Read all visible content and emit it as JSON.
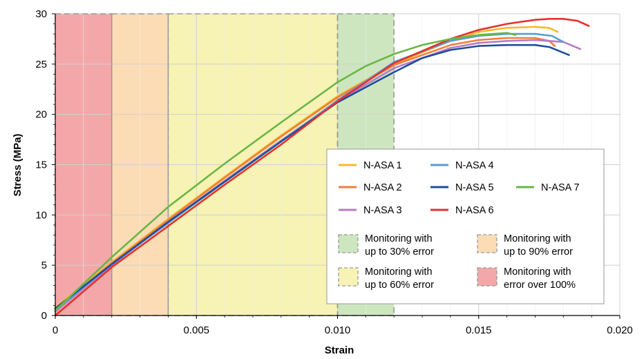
{
  "chart_data": {
    "type": "line",
    "title": "",
    "xlabel": "Strain",
    "ylabel": "Stress (MPa)",
    "xlim": [
      0,
      0.02
    ],
    "ylim": [
      0,
      30
    ],
    "x_ticks": [
      0,
      0.005,
      0.01,
      0.015,
      0.02
    ],
    "x_tick_labels": [
      "0",
      "0.005",
      "0.010",
      "0.015",
      "0.020"
    ],
    "y_ticks": [
      0,
      5,
      10,
      15,
      20,
      25,
      30
    ],
    "y_tick_labels": [
      "0",
      "5",
      "10",
      "15",
      "20",
      "25",
      "30"
    ],
    "grid": true,
    "legend_position": "lower-right",
    "regions": [
      {
        "label": "Monitoring with error over 100%",
        "lines": [
          "Monitoring with",
          "error over 100%"
        ],
        "x_range": [
          0,
          0.002
        ],
        "color": "#f4a7a8"
      },
      {
        "label": "Monitoring with up to 90% error",
        "lines": [
          "Monitoring with",
          "up to 90% error"
        ],
        "x_range": [
          0.002,
          0.004
        ],
        "color": "#fcdcb4"
      },
      {
        "label": "Monitoring with up to 60% error",
        "lines": [
          "Monitoring with",
          "up to 60% error"
        ],
        "x_range": [
          0.004,
          0.01
        ],
        "color": "#f6f3b4"
      },
      {
        "label": "Monitoring with up to 30% error",
        "lines": [
          "Monitoring with",
          "up to 30% error"
        ],
        "x_range": [
          0.01,
          0.012
        ],
        "color": "#cde6c0"
      }
    ],
    "series": [
      {
        "name": "N-ASA 1",
        "color": "#f7b92a",
        "x": [
          0,
          0.002,
          0.004,
          0.006,
          0.008,
          0.01,
          0.012,
          0.014,
          0.015,
          0.016,
          0.017,
          0.0175,
          0.0178
        ],
        "y": [
          0.8,
          5.3,
          9.6,
          13.8,
          17.9,
          21.8,
          25.0,
          27.3,
          28.2,
          28.6,
          28.7,
          28.6,
          28.2
        ]
      },
      {
        "name": "N-ASA 2",
        "color": "#f07e3c",
        "x": [
          0,
          0.002,
          0.004,
          0.006,
          0.008,
          0.01,
          0.012,
          0.014,
          0.015,
          0.016,
          0.017,
          0.0175,
          0.0177
        ],
        "y": [
          0.6,
          5.2,
          9.5,
          13.7,
          17.8,
          21.7,
          24.9,
          26.9,
          27.4,
          27.6,
          27.6,
          27.3,
          26.8
        ]
      },
      {
        "name": "N-ASA 3",
        "color": "#b57cc4",
        "x": [
          0,
          0.002,
          0.004,
          0.006,
          0.008,
          0.01,
          0.012,
          0.014,
          0.015,
          0.016,
          0.017,
          0.018,
          0.0186
        ],
        "y": [
          0.4,
          5.0,
          9.3,
          13.4,
          17.4,
          21.3,
          24.6,
          26.6,
          27.1,
          27.3,
          27.4,
          27.2,
          26.5
        ]
      },
      {
        "name": "N-ASA 4",
        "color": "#5b9bd5",
        "x": [
          0,
          0.002,
          0.004,
          0.006,
          0.008,
          0.01,
          0.012,
          0.014,
          0.015,
          0.016,
          0.017,
          0.0176,
          0.018
        ],
        "y": [
          0.5,
          5.1,
          9.2,
          13.3,
          17.3,
          21.4,
          25.2,
          27.3,
          27.8,
          28.0,
          28.0,
          27.8,
          27.2
        ]
      },
      {
        "name": "N-ASA 5",
        "color": "#1c4e9c",
        "x": [
          0,
          0.002,
          0.004,
          0.006,
          0.008,
          0.01,
          0.012,
          0.013,
          0.014,
          0.015,
          0.016,
          0.017,
          0.0175,
          0.0182
        ],
        "y": [
          0.7,
          5.1,
          9.3,
          13.3,
          17.3,
          21.2,
          24.2,
          25.6,
          26.4,
          26.8,
          26.9,
          26.9,
          26.7,
          25.9
        ]
      },
      {
        "name": "N-ASA 6",
        "color": "#e6302f",
        "x": [
          0,
          0.002,
          0.004,
          0.006,
          0.008,
          0.01,
          0.012,
          0.014,
          0.015,
          0.016,
          0.017,
          0.0175,
          0.018,
          0.0185,
          0.0189
        ],
        "y": [
          0,
          4.8,
          8.9,
          13.0,
          17.0,
          21.3,
          25.1,
          27.5,
          28.4,
          29.0,
          29.4,
          29.5,
          29.5,
          29.3,
          28.8
        ]
      },
      {
        "name": "N-ASA 7",
        "color": "#6ab646",
        "x": [
          0,
          0.002,
          0.004,
          0.006,
          0.008,
          0.01,
          0.011,
          0.012,
          0.013,
          0.014,
          0.015,
          0.016,
          0.0163
        ],
        "y": [
          0.5,
          5.8,
          10.8,
          15.1,
          19.2,
          23.2,
          24.8,
          26.0,
          26.9,
          27.5,
          27.9,
          28.1,
          27.9
        ]
      }
    ]
  }
}
